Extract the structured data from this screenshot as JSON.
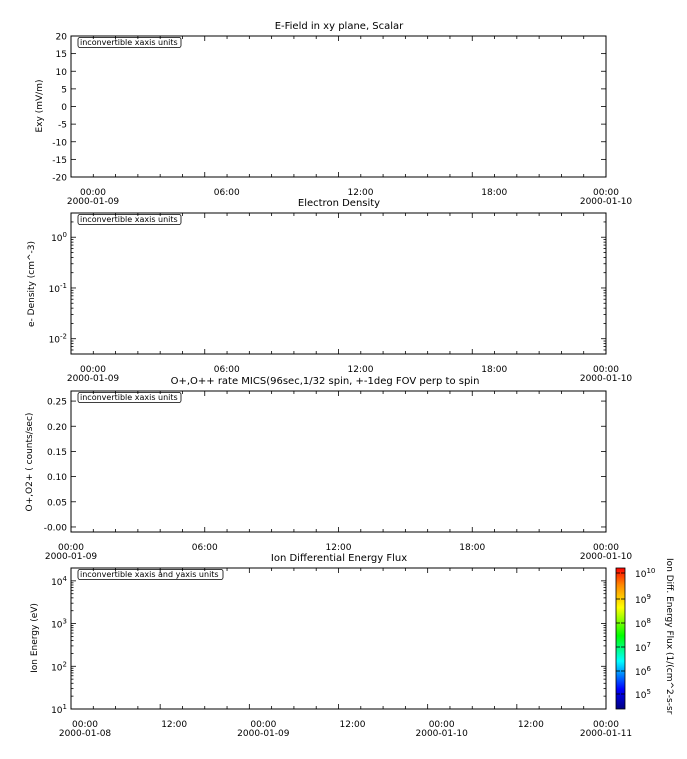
{
  "chart_data": [
    {
      "type": "line",
      "title": "E-Field in xy plane, Scalar",
      "ylabel": "Exy (mV/m)",
      "ylim": [
        -20,
        20
      ],
      "yscale": "linear",
      "yticks": [
        "20",
        "15",
        "10",
        "5",
        "0",
        "-5",
        "-10",
        "-15",
        "-20"
      ],
      "xticks": [
        {
          "time": "00:00",
          "date": "2000-01-09"
        },
        {
          "time": "06:00",
          "date": ""
        },
        {
          "time": "12:00",
          "date": ""
        },
        {
          "time": "18:00",
          "date": ""
        },
        {
          "time": "00:00",
          "date": "2000-01-10"
        }
      ],
      "note": "inconvertible xaxis units",
      "series": []
    },
    {
      "type": "line",
      "title": "Electron Density",
      "ylabel": "e- Density (cm^-3)",
      "ylim": [
        0.005,
        3
      ],
      "yscale": "log",
      "yticks": [
        {
          "base": "10",
          "exp": "0",
          "value": 1
        },
        {
          "base": "10",
          "exp": "-1",
          "value": 0.1
        },
        {
          "base": "10",
          "exp": "-2",
          "value": 0.01
        }
      ],
      "xticks": [
        {
          "time": "00:00",
          "date": "2000-01-09"
        },
        {
          "time": "06:00",
          "date": ""
        },
        {
          "time": "12:00",
          "date": ""
        },
        {
          "time": "18:00",
          "date": ""
        },
        {
          "time": "00:00",
          "date": "2000-01-10"
        }
      ],
      "note": "inconvertible xaxis units",
      "series": []
    },
    {
      "type": "line",
      "title": "O+,O++ rate MICS(96sec,1/32 spin, +-1deg FOV perp to spin",
      "ylabel": "O+,O2+ ( counts/sec)",
      "ylim": [
        -0.01,
        0.27
      ],
      "yscale": "linear",
      "yticks": [
        "0.25",
        "0.20",
        "0.15",
        "0.10",
        "0.05",
        "-0.00"
      ],
      "xticks": [
        {
          "time": "00:00",
          "date": "2000-01-09"
        },
        {
          "time": "06:00",
          "date": ""
        },
        {
          "time": "12:00",
          "date": ""
        },
        {
          "time": "18:00",
          "date": ""
        },
        {
          "time": "00:00",
          "date": "2000-01-10"
        }
      ],
      "note": "inconvertible xaxis units",
      "series": []
    },
    {
      "type": "heatmap",
      "title": "Ion Differential Energy Flux",
      "ylabel": "Ion Energy (eV)",
      "ylim": [
        10,
        20000
      ],
      "yscale": "log",
      "yticks": [
        {
          "base": "10",
          "exp": "4",
          "value": 10000
        },
        {
          "base": "10",
          "exp": "3",
          "value": 1000
        },
        {
          "base": "10",
          "exp": "2",
          "value": 100
        },
        {
          "base": "10",
          "exp": "1",
          "value": 10
        }
      ],
      "xticks": [
        {
          "time": "00:00",
          "date": "2000-01-08"
        },
        {
          "time": "12:00",
          "date": ""
        },
        {
          "time": "00:00",
          "date": "2000-01-09"
        },
        {
          "time": "12:00",
          "date": ""
        },
        {
          "time": "00:00",
          "date": "2000-01-10"
        },
        {
          "time": "12:00",
          "date": ""
        },
        {
          "time": "00:00",
          "date": "2000-01-11"
        }
      ],
      "note": "inconvertible xaxis and yaxis units",
      "colorbar": {
        "label": "Ion Diff. Energy Flux (1/(cm^2-s-sr",
        "ticks": [
          {
            "base": "10",
            "exp": "10"
          },
          {
            "base": "10",
            "exp": "9"
          },
          {
            "base": "10",
            "exp": "8"
          },
          {
            "base": "10",
            "exp": "7"
          },
          {
            "base": "10",
            "exp": "6"
          },
          {
            "base": "10",
            "exp": "5"
          }
        ],
        "colors": [
          "#ff0000",
          "#ff8800",
          "#ffff00",
          "#00ff00",
          "#00ffff",
          "#0000ff",
          "#000080"
        ]
      },
      "series": []
    }
  ]
}
